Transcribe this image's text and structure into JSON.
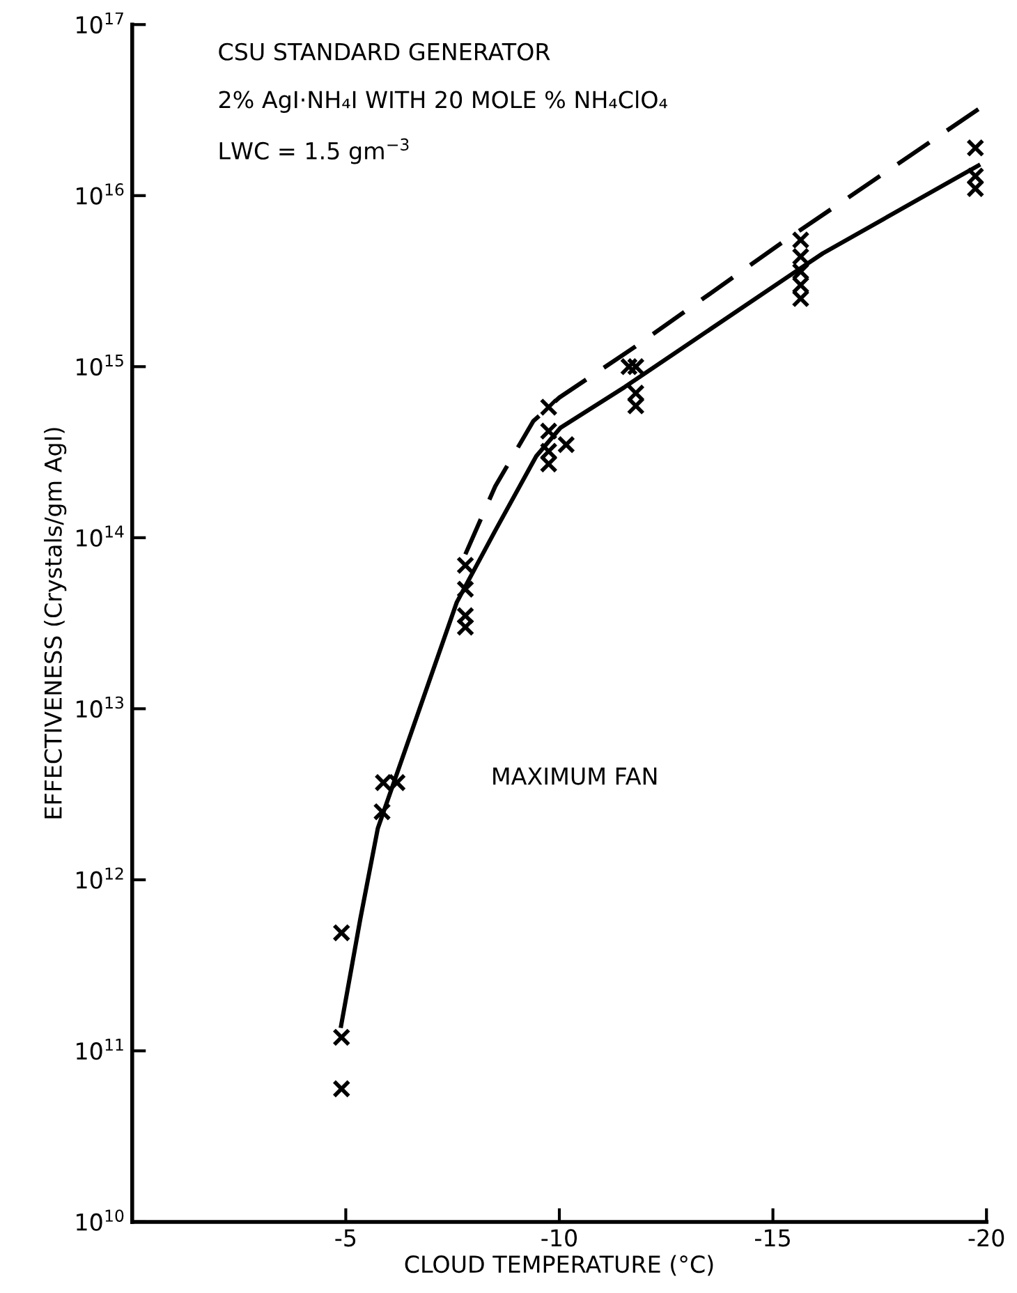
{
  "chart_data": {
    "type": "scatter",
    "title": "CSU STANDARD GENERATOR",
    "subtitle": "2% AgI·NH₄I WITH 20 MOLE % NH₄ClO₄",
    "annotations": [
      "LWC = 1.5 gm$^{−3}$",
      "MAXIMUM FAN"
    ],
    "xlabel": "CLOUD TEMPERATURE (°C)",
    "ylabel": "EFFECTIVENESS (Crystals/gm AgI)",
    "log": "y",
    "grid": false,
    "legend": false,
    "xlim": [
      0,
      -20
    ],
    "xticks": [
      {
        "value": 0,
        "label": null
      },
      -5,
      -10,
      -15,
      -20
    ],
    "ylim": [
      10000000000.0,
      1e+17
    ],
    "yticks": [
      {
        "value": 10000000000.0,
        "label": "10$^{10}$"
      },
      {
        "value": 100000000000.0,
        "label": "10$^{11}$"
      },
      {
        "value": 1000000000000.0,
        "label": "10$^{12}$"
      },
      {
        "value": 10000000000000.0,
        "label": "10$^{13}$"
      },
      {
        "value": 100000000000000.0,
        "label": "10$^{14}$"
      },
      {
        "value": 1000000000000000.0,
        "label": "10$^{15}$"
      },
      {
        "value": 1e+16,
        "label": "10$^{16}$"
      },
      {
        "value": 1e+17,
        "label": "10$^{17}$"
      }
    ],
    "series": [
      {
        "marker": "cross",
        "color": "#000000",
        "x": [
          -4.9,
          -4.9,
          -4.9,
          -5.85,
          -5.88,
          -6.2,
          -7.8,
          -7.8,
          -7.8,
          -7.8,
          -9.75,
          -9.75,
          -9.75,
          -9.75,
          -10.16,
          -11.63,
          -11.79,
          -11.79,
          -11.79,
          -15.65,
          -15.65,
          -15.65,
          -15.65,
          -15.65,
          -19.74,
          -19.74,
          -19.74
        ],
        "values": [
          490000000000.0,
          120000000000.0,
          60000000000.0,
          2500000000000.0,
          3700000000000.0,
          3700000000000.0,
          69000000000000.0,
          50000000000000.0,
          35000000000000.0,
          30000000000000.0,
          580000000000000.0,
          420000000000000.0,
          320000000000000.0,
          270000000000000.0,
          350000000000000.0,
          1000000000000000.0,
          1000000000000000.0,
          700000000000000.0,
          590000000000000.0,
          5500000000000000.0,
          4400000000000000.0,
          3600000000000000.0,
          3000000000000000.0,
          2500000000000000.0,
          1.9e+16,
          1.3e+16,
          1.1e+16
        ]
      },
      {
        "type": "line",
        "line_style": "solid",
        "marker": "none",
        "color": "#000000",
        "x": [
          -4.89,
          -5.34,
          -5.75,
          -7.6,
          -8.5,
          -9.46,
          -10.03,
          -11.53,
          -15.46,
          -16.17,
          -19.81
        ],
        "values": [
          140000000000.0,
          590000000000.0,
          2000000000000.0,
          42000000000000.0,
          110000000000000.0,
          300000000000000.0,
          440000000000000.0,
          760000000000000.0,
          3500000000000000.0,
          4600000000000000.0,
          1.5e+16
        ]
      },
      {
        "type": "line",
        "line_style": "dashed",
        "marker": "none",
        "color": "#000000",
        "x": [
          -7.8,
          -8.5,
          -9.39,
          -10.0,
          -11.76,
          -15.3,
          -19.81
        ],
        "values": [
          80000000000000.0,
          200000000000000.0,
          480000000000000.0,
          660000000000000.0,
          1300000000000000.0,
          5500000000000000.0,
          3.2e+16
        ]
      }
    ]
  }
}
